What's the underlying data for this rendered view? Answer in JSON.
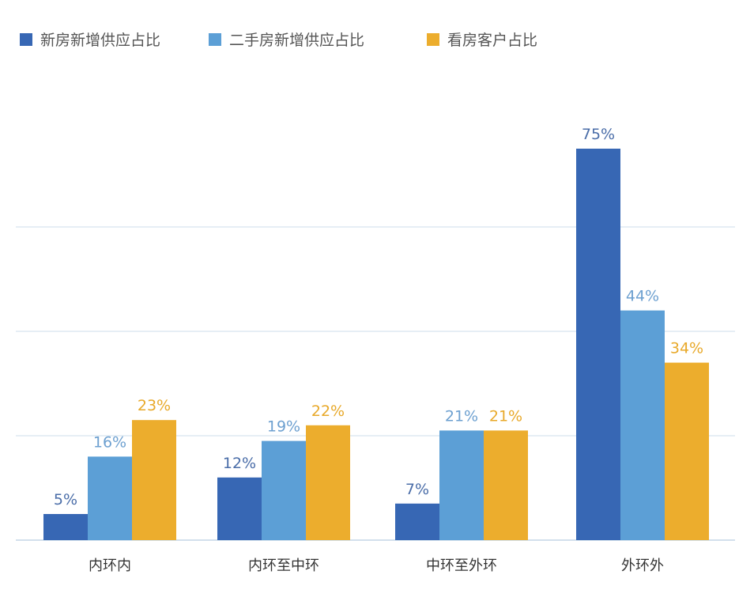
{
  "colors": {
    "new_supply": "#3767b4",
    "second_hand_supply": "#5c9fd6",
    "viewing_clients": "#ecad2d",
    "gridline": "#dde8f2",
    "baseline": "#c4d6e6"
  },
  "chart_data": {
    "type": "bar",
    "title": "",
    "xlabel": "",
    "ylabel": "",
    "categories": [
      "内环内",
      "内环至中环",
      "中环至外环",
      "外环外"
    ],
    "series": [
      {
        "name": "新房新增供应占比",
        "values": [
          5,
          12,
          7,
          75
        ],
        "labels": [
          "5%",
          "12%",
          "7%",
          "75%"
        ]
      },
      {
        "name": "二手房新增供应占比",
        "values": [
          16,
          19,
          21,
          44
        ],
        "labels": [
          "16%",
          "19%",
          "21%",
          "44%"
        ]
      },
      {
        "name": "看房客户占比",
        "values": [
          23,
          22,
          21,
          34
        ],
        "labels": [
          "23%",
          "22%",
          "21%",
          "34%"
        ]
      }
    ],
    "ylim": [
      0,
      80
    ],
    "gridlines": [
      20,
      40,
      60
    ],
    "grid": true,
    "legend_position": "top-left"
  }
}
